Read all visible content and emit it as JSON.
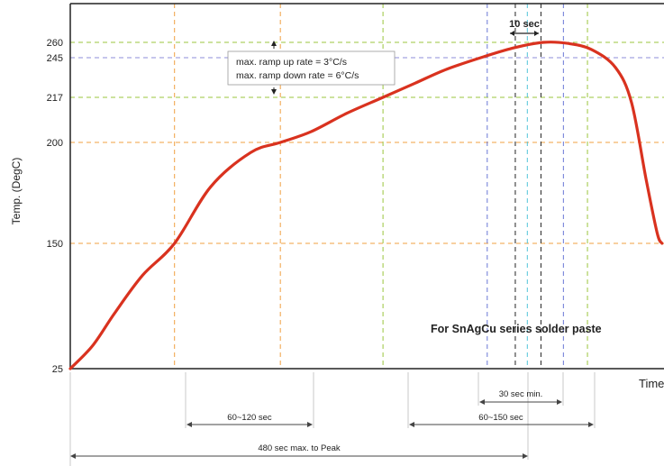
{
  "chart_data": {
    "type": "line",
    "title": "",
    "xlabel": "Time",
    "ylabel": "Temp. (DegC)",
    "y_ticks": [
      25,
      150,
      200,
      217,
      245,
      260
    ],
    "curve": {
      "color": "#d9321f",
      "points": [
        [
          0,
          25
        ],
        [
          28,
          48
        ],
        [
          55,
          80
        ],
        [
          90,
          118
        ],
        [
          130,
          150
        ],
        [
          175,
          178
        ],
        [
          225,
          195
        ],
        [
          262,
          200
        ],
        [
          300,
          204
        ],
        [
          345,
          211
        ],
        [
          390,
          217
        ],
        [
          430,
          227
        ],
        [
          470,
          237
        ],
        [
          520,
          247
        ],
        [
          555,
          255
        ],
        [
          590,
          260
        ],
        [
          620,
          259
        ],
        [
          650,
          253
        ],
        [
          680,
          238
        ],
        [
          700,
          215
        ],
        [
          718,
          182
        ],
        [
          732,
          155
        ],
        [
          738,
          150
        ]
      ]
    },
    "reference_lines": [
      {
        "axis": "y",
        "value": 260,
        "color": "#9bc53d"
      },
      {
        "axis": "y",
        "value": 245,
        "color": "#8c8cd9"
      },
      {
        "axis": "y",
        "value": 217,
        "color": "#9bc53d"
      },
      {
        "axis": "y",
        "value": 200,
        "color": "#f0a040"
      },
      {
        "axis": "y",
        "value": 150,
        "color": "#f0a040"
      },
      {
        "axis": "x",
        "value": 130,
        "color": "#f0a040"
      },
      {
        "axis": "x",
        "value": 262,
        "color": "#f0a040"
      },
      {
        "axis": "x",
        "value": 390,
        "color": "#9bc53d"
      },
      {
        "axis": "x",
        "value": 520,
        "color": "#6a78d6"
      },
      {
        "axis": "x",
        "value": 555,
        "color": "#222222"
      },
      {
        "axis": "x",
        "value": 570,
        "color": "#4fc3d9"
      },
      {
        "axis": "x",
        "value": 587,
        "color": "#222222"
      },
      {
        "axis": "x",
        "value": 615,
        "color": "#6a78d6"
      },
      {
        "axis": "x",
        "value": 645,
        "color": "#9bc53d"
      }
    ],
    "annotations": {
      "ramp_line1": "max. ramp up rate = 3°C/s",
      "ramp_line2": "max. ramp down rate = 6°C/s",
      "peak_width": "10 sec",
      "series_note": "For SnAgCu series solder paste",
      "span_preheat": "60~120 sec",
      "span_liquidus": "60~150 sec",
      "span_near_peak": "30 sec min.",
      "span_total": "480 sec max. to Peak"
    }
  }
}
